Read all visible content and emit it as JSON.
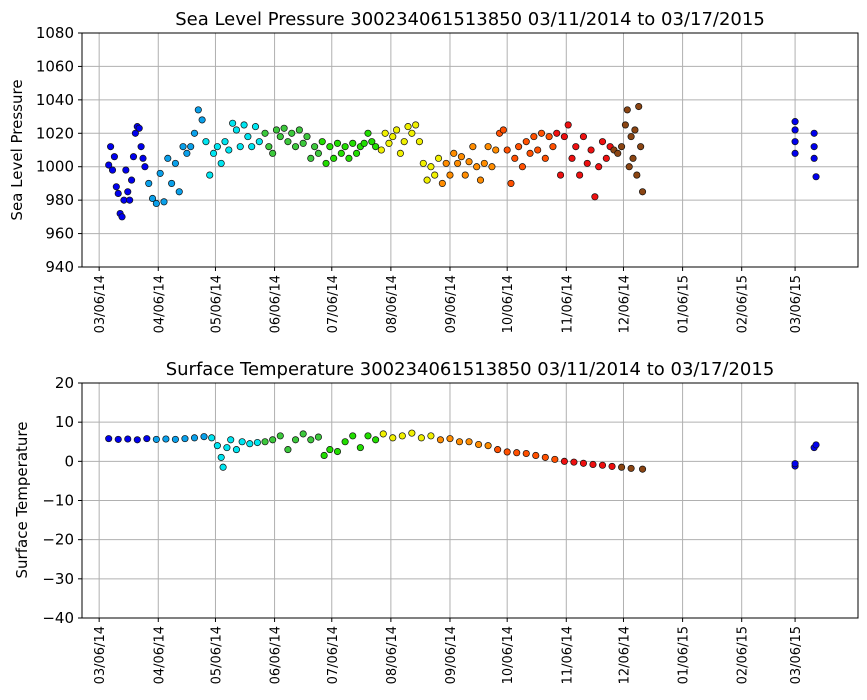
{
  "chart_data": [
    {
      "type": "scatter",
      "title": "Sea Level Pressure 300234061513850  03/11/2014 to 03/17/2015",
      "ylabel": "Sea Level Pressure",
      "xlabel": "",
      "ylim": [
        940,
        1080
      ],
      "yticks": [
        940,
        960,
        980,
        1000,
        1020,
        1040,
        1060,
        1080
      ],
      "xlim": [
        "2014-02-25",
        "2015-04-08"
      ],
      "xticks": [
        "03/06/14",
        "04/06/14",
        "05/06/14",
        "06/06/14",
        "07/06/14",
        "08/06/14",
        "09/06/14",
        "10/06/14",
        "11/06/14",
        "12/06/14",
        "01/06/15",
        "02/06/15",
        "03/06/15"
      ],
      "xtick_dates": [
        "2014-03-06",
        "2014-04-06",
        "2014-05-06",
        "2014-06-06",
        "2014-07-06",
        "2014-08-06",
        "2014-09-06",
        "2014-10-06",
        "2014-11-06",
        "2014-12-06",
        "2015-01-06",
        "2015-02-06",
        "2015-03-06"
      ],
      "grid": true,
      "point_color_by": "month",
      "points": [
        {
          "x": "2014-03-11",
          "y": 1001
        },
        {
          "x": "2014-03-12",
          "y": 1012
        },
        {
          "x": "2014-03-13",
          "y": 998
        },
        {
          "x": "2014-03-14",
          "y": 1006
        },
        {
          "x": "2014-03-15",
          "y": 988
        },
        {
          "x": "2014-03-16",
          "y": 984
        },
        {
          "x": "2014-03-17",
          "y": 972
        },
        {
          "x": "2014-03-18",
          "y": 970
        },
        {
          "x": "2014-03-19",
          "y": 980
        },
        {
          "x": "2014-03-20",
          "y": 998
        },
        {
          "x": "2014-03-21",
          "y": 985
        },
        {
          "x": "2014-03-22",
          "y": 980
        },
        {
          "x": "2014-03-23",
          "y": 992
        },
        {
          "x": "2014-03-24",
          "y": 1006
        },
        {
          "x": "2014-03-25",
          "y": 1020
        },
        {
          "x": "2014-03-26",
          "y": 1024
        },
        {
          "x": "2014-03-27",
          "y": 1023
        },
        {
          "x": "2014-03-28",
          "y": 1012
        },
        {
          "x": "2014-03-29",
          "y": 1005
        },
        {
          "x": "2014-03-30",
          "y": 1000
        },
        {
          "x": "2014-04-01",
          "y": 990
        },
        {
          "x": "2014-04-03",
          "y": 981
        },
        {
          "x": "2014-04-05",
          "y": 978
        },
        {
          "x": "2014-04-07",
          "y": 996
        },
        {
          "x": "2014-04-09",
          "y": 979
        },
        {
          "x": "2014-04-11",
          "y": 1005
        },
        {
          "x": "2014-04-13",
          "y": 990
        },
        {
          "x": "2014-04-15",
          "y": 1002
        },
        {
          "x": "2014-04-17",
          "y": 985
        },
        {
          "x": "2014-04-19",
          "y": 1012
        },
        {
          "x": "2014-04-21",
          "y": 1008
        },
        {
          "x": "2014-04-23",
          "y": 1012
        },
        {
          "x": "2014-04-25",
          "y": 1020
        },
        {
          "x": "2014-04-27",
          "y": 1034
        },
        {
          "x": "2014-04-29",
          "y": 1028
        },
        {
          "x": "2014-05-01",
          "y": 1015
        },
        {
          "x": "2014-05-03",
          "y": 995
        },
        {
          "x": "2014-05-05",
          "y": 1008
        },
        {
          "x": "2014-05-07",
          "y": 1012
        },
        {
          "x": "2014-05-09",
          "y": 1002
        },
        {
          "x": "2014-05-11",
          "y": 1015
        },
        {
          "x": "2014-05-13",
          "y": 1010
        },
        {
          "x": "2014-05-15",
          "y": 1026
        },
        {
          "x": "2014-05-17",
          "y": 1022
        },
        {
          "x": "2014-05-19",
          "y": 1012
        },
        {
          "x": "2014-05-21",
          "y": 1025
        },
        {
          "x": "2014-05-23",
          "y": 1018
        },
        {
          "x": "2014-05-25",
          "y": 1012
        },
        {
          "x": "2014-05-27",
          "y": 1024
        },
        {
          "x": "2014-05-29",
          "y": 1015
        },
        {
          "x": "2014-06-01",
          "y": 1020
        },
        {
          "x": "2014-06-03",
          "y": 1012
        },
        {
          "x": "2014-06-05",
          "y": 1008
        },
        {
          "x": "2014-06-07",
          "y": 1022
        },
        {
          "x": "2014-06-09",
          "y": 1018
        },
        {
          "x": "2014-06-11",
          "y": 1023
        },
        {
          "x": "2014-06-13",
          "y": 1015
        },
        {
          "x": "2014-06-15",
          "y": 1020
        },
        {
          "x": "2014-06-17",
          "y": 1012
        },
        {
          "x": "2014-06-19",
          "y": 1022
        },
        {
          "x": "2014-06-21",
          "y": 1014
        },
        {
          "x": "2014-06-23",
          "y": 1018
        },
        {
          "x": "2014-06-25",
          "y": 1005
        },
        {
          "x": "2014-06-27",
          "y": 1012
        },
        {
          "x": "2014-06-29",
          "y": 1008
        },
        {
          "x": "2014-07-01",
          "y": 1015
        },
        {
          "x": "2014-07-03",
          "y": 1002
        },
        {
          "x": "2014-07-05",
          "y": 1012
        },
        {
          "x": "2014-07-07",
          "y": 1005
        },
        {
          "x": "2014-07-09",
          "y": 1014
        },
        {
          "x": "2014-07-11",
          "y": 1008
        },
        {
          "x": "2014-07-13",
          "y": 1012
        },
        {
          "x": "2014-07-15",
          "y": 1005
        },
        {
          "x": "2014-07-17",
          "y": 1014
        },
        {
          "x": "2014-07-19",
          "y": 1008
        },
        {
          "x": "2014-07-21",
          "y": 1012
        },
        {
          "x": "2014-07-23",
          "y": 1014
        },
        {
          "x": "2014-07-25",
          "y": 1020
        },
        {
          "x": "2014-07-27",
          "y": 1015
        },
        {
          "x": "2014-07-29",
          "y": 1012
        },
        {
          "x": "2014-08-01",
          "y": 1010
        },
        {
          "x": "2014-08-03",
          "y": 1020
        },
        {
          "x": "2014-08-05",
          "y": 1014
        },
        {
          "x": "2014-08-07",
          "y": 1018
        },
        {
          "x": "2014-08-09",
          "y": 1022
        },
        {
          "x": "2014-08-11",
          "y": 1008
        },
        {
          "x": "2014-08-13",
          "y": 1015
        },
        {
          "x": "2014-08-15",
          "y": 1024
        },
        {
          "x": "2014-08-17",
          "y": 1020
        },
        {
          "x": "2014-08-19",
          "y": 1025
        },
        {
          "x": "2014-08-21",
          "y": 1015
        },
        {
          "x": "2014-08-23",
          "y": 1002
        },
        {
          "x": "2014-08-25",
          "y": 992
        },
        {
          "x": "2014-08-27",
          "y": 1000
        },
        {
          "x": "2014-08-29",
          "y": 995
        },
        {
          "x": "2014-08-31",
          "y": 1005
        },
        {
          "x": "2014-09-02",
          "y": 990
        },
        {
          "x": "2014-09-04",
          "y": 1002
        },
        {
          "x": "2014-09-06",
          "y": 995
        },
        {
          "x": "2014-09-08",
          "y": 1008
        },
        {
          "x": "2014-09-10",
          "y": 1002
        },
        {
          "x": "2014-09-12",
          "y": 1006
        },
        {
          "x": "2014-09-14",
          "y": 995
        },
        {
          "x": "2014-09-16",
          "y": 1003
        },
        {
          "x": "2014-09-18",
          "y": 1012
        },
        {
          "x": "2014-09-20",
          "y": 1000
        },
        {
          "x": "2014-09-22",
          "y": 992
        },
        {
          "x": "2014-09-24",
          "y": 1002
        },
        {
          "x": "2014-09-26",
          "y": 1012
        },
        {
          "x": "2014-09-28",
          "y": 1000
        },
        {
          "x": "2014-09-30",
          "y": 1010
        },
        {
          "x": "2014-10-02",
          "y": 1020
        },
        {
          "x": "2014-10-04",
          "y": 1022
        },
        {
          "x": "2014-10-06",
          "y": 1010
        },
        {
          "x": "2014-10-08",
          "y": 990
        },
        {
          "x": "2014-10-10",
          "y": 1005
        },
        {
          "x": "2014-10-12",
          "y": 1012
        },
        {
          "x": "2014-10-14",
          "y": 1000
        },
        {
          "x": "2014-10-16",
          "y": 1015
        },
        {
          "x": "2014-10-18",
          "y": 1008
        },
        {
          "x": "2014-10-20",
          "y": 1018
        },
        {
          "x": "2014-10-22",
          "y": 1010
        },
        {
          "x": "2014-10-24",
          "y": 1020
        },
        {
          "x": "2014-10-26",
          "y": 1005
        },
        {
          "x": "2014-10-28",
          "y": 1018
        },
        {
          "x": "2014-10-30",
          "y": 1012
        },
        {
          "x": "2014-11-01",
          "y": 1020
        },
        {
          "x": "2014-11-03",
          "y": 995
        },
        {
          "x": "2014-11-05",
          "y": 1018
        },
        {
          "x": "2014-11-07",
          "y": 1025
        },
        {
          "x": "2014-11-09",
          "y": 1005
        },
        {
          "x": "2014-11-11",
          "y": 1012
        },
        {
          "x": "2014-11-13",
          "y": 995
        },
        {
          "x": "2014-11-15",
          "y": 1018
        },
        {
          "x": "2014-11-17",
          "y": 1002
        },
        {
          "x": "2014-11-19",
          "y": 1010
        },
        {
          "x": "2014-11-21",
          "y": 982
        },
        {
          "x": "2014-11-23",
          "y": 1000
        },
        {
          "x": "2014-11-25",
          "y": 1015
        },
        {
          "x": "2014-11-27",
          "y": 1005
        },
        {
          "x": "2014-11-29",
          "y": 1012
        },
        {
          "x": "2014-12-01",
          "y": 1010
        },
        {
          "x": "2014-12-03",
          "y": 1008
        },
        {
          "x": "2014-12-05",
          "y": 1012
        },
        {
          "x": "2014-12-07",
          "y": 1025
        },
        {
          "x": "2014-12-08",
          "y": 1034
        },
        {
          "x": "2014-12-09",
          "y": 1000
        },
        {
          "x": "2014-12-10",
          "y": 1018
        },
        {
          "x": "2014-12-11",
          "y": 1005
        },
        {
          "x": "2014-12-12",
          "y": 1022
        },
        {
          "x": "2014-12-13",
          "y": 995
        },
        {
          "x": "2014-12-14",
          "y": 1036
        },
        {
          "x": "2014-12-15",
          "y": 1012
        },
        {
          "x": "2014-12-16",
          "y": 985
        },
        {
          "x": "2015-03-06",
          "y": 1027
        },
        {
          "x": "2015-03-06",
          "y": 1022
        },
        {
          "x": "2015-03-06",
          "y": 1015
        },
        {
          "x": "2015-03-06",
          "y": 1008
        },
        {
          "x": "2015-03-16",
          "y": 1020
        },
        {
          "x": "2015-03-16",
          "y": 1012
        },
        {
          "x": "2015-03-16",
          "y": 1005
        },
        {
          "x": "2015-03-17",
          "y": 994
        }
      ]
    },
    {
      "type": "scatter",
      "title": "Surface Temperature 300234061513850  03/11/2014 to 03/17/2015",
      "ylabel": "Surface Temperature",
      "xlabel": "",
      "ylim": [
        -40,
        20
      ],
      "yticks": [
        -40,
        -30,
        -20,
        -10,
        0,
        10,
        20
      ],
      "xlim": [
        "2014-02-25",
        "2015-04-08"
      ],
      "xticks": [
        "03/06/14",
        "04/06/14",
        "05/06/14",
        "06/06/14",
        "07/06/14",
        "08/06/14",
        "09/06/14",
        "10/06/14",
        "11/06/14",
        "12/06/14",
        "01/06/15",
        "02/06/15",
        "03/06/15"
      ],
      "xtick_dates": [
        "2014-03-06",
        "2014-04-06",
        "2014-05-06",
        "2014-06-06",
        "2014-07-06",
        "2014-08-06",
        "2014-09-06",
        "2014-10-06",
        "2014-11-06",
        "2014-12-06",
        "2015-01-06",
        "2015-02-06",
        "2015-03-06"
      ],
      "grid": true,
      "point_color_by": "month",
      "points": [
        {
          "x": "2014-03-11",
          "y": 5.8
        },
        {
          "x": "2014-03-16",
          "y": 5.6
        },
        {
          "x": "2014-03-21",
          "y": 5.7
        },
        {
          "x": "2014-03-26",
          "y": 5.5
        },
        {
          "x": "2014-03-31",
          "y": 5.8
        },
        {
          "x": "2014-04-05",
          "y": 5.6
        },
        {
          "x": "2014-04-10",
          "y": 5.7
        },
        {
          "x": "2014-04-15",
          "y": 5.6
        },
        {
          "x": "2014-04-20",
          "y": 5.8
        },
        {
          "x": "2014-04-25",
          "y": 6.0
        },
        {
          "x": "2014-04-30",
          "y": 6.3
        },
        {
          "x": "2014-05-04",
          "y": 6.0
        },
        {
          "x": "2014-05-07",
          "y": 4.0
        },
        {
          "x": "2014-05-09",
          "y": 1.0
        },
        {
          "x": "2014-05-10",
          "y": -1.5
        },
        {
          "x": "2014-05-12",
          "y": 3.5
        },
        {
          "x": "2014-05-14",
          "y": 5.5
        },
        {
          "x": "2014-05-17",
          "y": 3.0
        },
        {
          "x": "2014-05-20",
          "y": 5.0
        },
        {
          "x": "2014-05-24",
          "y": 4.5
        },
        {
          "x": "2014-05-28",
          "y": 4.8
        },
        {
          "x": "2014-06-01",
          "y": 5.0
        },
        {
          "x": "2014-06-05",
          "y": 5.5
        },
        {
          "x": "2014-06-09",
          "y": 6.5
        },
        {
          "x": "2014-06-13",
          "y": 3.0
        },
        {
          "x": "2014-06-17",
          "y": 5.5
        },
        {
          "x": "2014-06-21",
          "y": 7.0
        },
        {
          "x": "2014-06-25",
          "y": 5.5
        },
        {
          "x": "2014-06-29",
          "y": 6.2
        },
        {
          "x": "2014-07-02",
          "y": 1.5
        },
        {
          "x": "2014-07-05",
          "y": 3.0
        },
        {
          "x": "2014-07-09",
          "y": 2.5
        },
        {
          "x": "2014-07-13",
          "y": 5.0
        },
        {
          "x": "2014-07-17",
          "y": 6.5
        },
        {
          "x": "2014-07-21",
          "y": 3.5
        },
        {
          "x": "2014-07-25",
          "y": 6.5
        },
        {
          "x": "2014-07-29",
          "y": 5.5
        },
        {
          "x": "2014-08-02",
          "y": 7.0
        },
        {
          "x": "2014-08-07",
          "y": 6.0
        },
        {
          "x": "2014-08-12",
          "y": 6.5
        },
        {
          "x": "2014-08-17",
          "y": 7.2
        },
        {
          "x": "2014-08-22",
          "y": 6.0
        },
        {
          "x": "2014-08-27",
          "y": 6.5
        },
        {
          "x": "2014-09-01",
          "y": 5.5
        },
        {
          "x": "2014-09-06",
          "y": 5.8
        },
        {
          "x": "2014-09-11",
          "y": 5.0
        },
        {
          "x": "2014-09-16",
          "y": 5.0
        },
        {
          "x": "2014-09-21",
          "y": 4.3
        },
        {
          "x": "2014-09-26",
          "y": 4.0
        },
        {
          "x": "2014-10-01",
          "y": 3.0
        },
        {
          "x": "2014-10-06",
          "y": 2.4
        },
        {
          "x": "2014-10-11",
          "y": 2.2
        },
        {
          "x": "2014-10-16",
          "y": 2.0
        },
        {
          "x": "2014-10-21",
          "y": 1.5
        },
        {
          "x": "2014-10-26",
          "y": 1.0
        },
        {
          "x": "2014-10-31",
          "y": 0.5
        },
        {
          "x": "2014-11-05",
          "y": 0.0
        },
        {
          "x": "2014-11-10",
          "y": -0.2
        },
        {
          "x": "2014-11-15",
          "y": -0.5
        },
        {
          "x": "2014-11-20",
          "y": -0.8
        },
        {
          "x": "2014-11-25",
          "y": -1.0
        },
        {
          "x": "2014-11-30",
          "y": -1.3
        },
        {
          "x": "2014-12-05",
          "y": -1.5
        },
        {
          "x": "2014-12-10",
          "y": -1.8
        },
        {
          "x": "2014-12-16",
          "y": -2.0
        },
        {
          "x": "2015-03-06",
          "y": -1.2
        },
        {
          "x": "2015-03-06",
          "y": -0.6
        },
        {
          "x": "2015-03-16",
          "y": 3.5
        },
        {
          "x": "2015-03-17",
          "y": 4.2
        }
      ]
    }
  ],
  "month_colors": {
    "2014-03": "#0000ee",
    "2014-04": "#0aa0ea",
    "2014-05": "#00e5f0",
    "2014-06": "#3cc83c",
    "2014-07": "#22dd00",
    "2014-08": "#f0f000",
    "2014-09": "#ff8c00",
    "2014-10": "#ff5000",
    "2014-11": "#ee1010",
    "2014-12": "#8b4513",
    "2015-03": "#0000ee"
  }
}
